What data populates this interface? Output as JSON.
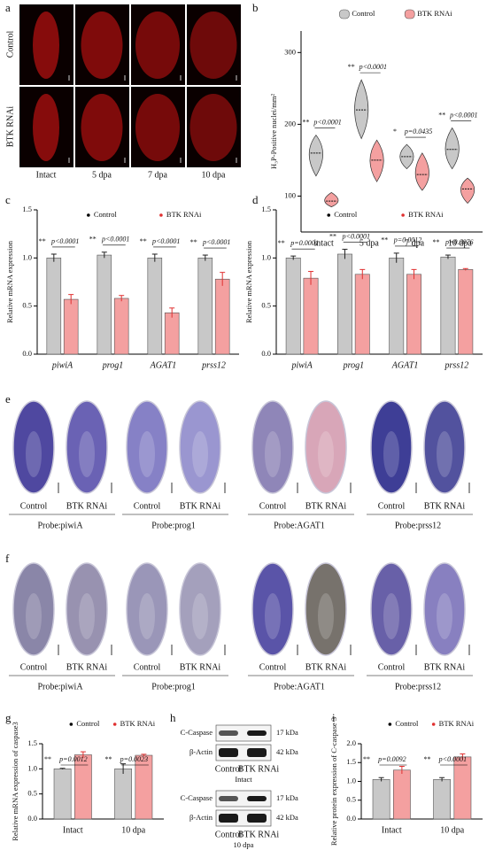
{
  "chart_data": [
    {
      "type": "violin",
      "panel": "b",
      "ylabel": "H₃P-Positive nuclei/mm²",
      "categories": [
        "intact",
        "5 dpa",
        "7 dpa",
        "10 dpa"
      ],
      "series": [
        {
          "name": "Control",
          "color": "#c8c8c8",
          "values": [
            160,
            220,
            155,
            165
          ],
          "mins": [
            128,
            180,
            138,
            138
          ],
          "maxs": [
            185,
            262,
            172,
            195
          ]
        },
        {
          "name": "BTK RNAi",
          "color": "#f4a0a0",
          "values": [
            93,
            150,
            130,
            110
          ],
          "mins": [
            85,
            120,
            108,
            90
          ],
          "maxs": [
            105,
            178,
            160,
            125
          ]
        }
      ],
      "ylim": [
        50,
        330
      ],
      "yticks": [
        100,
        200,
        300
      ],
      "annotations": [
        {
          "stars": "**",
          "text": "p<0.0001"
        },
        {
          "stars": "**",
          "text": "p<0.0001"
        },
        {
          "stars": "*",
          "text": "p=0.0435"
        },
        {
          "stars": "**",
          "text": "p<0.0001"
        }
      ]
    },
    {
      "type": "bar",
      "panel": "c",
      "ylabel": "Relative mRNA expression",
      "categories": [
        "piwiA",
        "prog1",
        "AGAT1",
        "prss12"
      ],
      "series": [
        {
          "name": "Control",
          "color": "#c8c8c8",
          "values": [
            1.0,
            1.03,
            1.0,
            1.0
          ],
          "errors": [
            0.04,
            0.03,
            0.04,
            0.03
          ]
        },
        {
          "name": "BTK RNAi",
          "color": "#f4a0a0",
          "values": [
            0.57,
            0.58,
            0.43,
            0.78
          ],
          "errors": [
            0.05,
            0.03,
            0.05,
            0.07
          ]
        }
      ],
      "ylim": [
        0,
        1.5
      ],
      "yticks": [
        {
          "value": 0,
          "label": "0.0"
        },
        0.5,
        {
          "value": 1,
          "label": "1.0"
        },
        1.5
      ],
      "annotations": [
        {
          "stars": "**",
          "text": "p<0.0001"
        },
        {
          "stars": "**",
          "text": "p<0.0001"
        },
        {
          "stars": "**",
          "text": "p<0.0001"
        },
        {
          "stars": "**",
          "text": "p<0.0001"
        }
      ]
    },
    {
      "type": "bar",
      "panel": "d",
      "ylabel": "Relative mRNA expression",
      "categories": [
        "piwiA",
        "prog1",
        "AGAT1",
        "prss12"
      ],
      "series": [
        {
          "name": "Control",
          "color": "#c8c8c8",
          "values": [
            1.0,
            1.04,
            1.0,
            1.01
          ],
          "errors": [
            0.02,
            0.05,
            0.05,
            0.02
          ]
        },
        {
          "name": "BTK RNAi",
          "color": "#f4a0a0",
          "values": [
            0.79,
            0.83,
            0.83,
            0.88
          ],
          "errors": [
            0.07,
            0.05,
            0.05,
            0.01
          ]
        }
      ],
      "ylim": [
        0,
        1.5
      ],
      "yticks": [
        {
          "value": 0,
          "label": "0.0"
        },
        0.5,
        {
          "value": 1,
          "label": "1.0"
        },
        1.5
      ],
      "annotations": [
        {
          "stars": "**",
          "text": "p=0.0001"
        },
        {
          "stars": "**",
          "text": "p<0.0001"
        },
        {
          "stars": "**",
          "text": "p=0.0012"
        },
        {
          "stars": "**",
          "text": "p=0.0076"
        }
      ]
    },
    {
      "type": "bar",
      "panel": "g",
      "ylabel": "Relative mRNA expression of caspase3",
      "categories": [
        "Intact",
        "10 dpa"
      ],
      "series": [
        {
          "name": "Control",
          "color": "#c8c8c8",
          "values": [
            1.0,
            1.0
          ],
          "errors": [
            0.01,
            0.1
          ]
        },
        {
          "name": "BTK RNAi",
          "color": "#f4a0a0",
          "values": [
            1.28,
            1.27
          ],
          "errors": [
            0.06,
            0.02
          ]
        }
      ],
      "ylim": [
        0,
        1.5
      ],
      "yticks": [
        {
          "value": 0,
          "label": "0.0"
        },
        0.5,
        {
          "value": 1,
          "label": "1.0"
        },
        1.5
      ],
      "annotations": [
        {
          "stars": "**",
          "text": "p=0.0012"
        },
        {
          "stars": "**",
          "text": "p=0.0023"
        }
      ]
    },
    {
      "type": "bar",
      "panel": "i",
      "ylabel": "Relative protein expression of C-caspase 3",
      "categories": [
        "Intact",
        "10 dpa"
      ],
      "series": [
        {
          "name": "Control",
          "color": "#c8c8c8",
          "values": [
            1.05,
            1.05
          ],
          "errors": [
            0.05,
            0.05
          ]
        },
        {
          "name": "BTK RNAi",
          "color": "#f4a0a0",
          "values": [
            1.3,
            1.65
          ],
          "errors": [
            0.1,
            0.08
          ]
        }
      ],
      "ylim": [
        0,
        2
      ],
      "yticks": [
        {
          "value": 0,
          "label": "0.0"
        },
        0.5,
        {
          "value": 1,
          "label": "1.0"
        },
        1.5,
        {
          "value": 2,
          "label": "2.0"
        }
      ],
      "annotations": [
        {
          "stars": "**",
          "text": "p=0.0092"
        },
        {
          "stars": "**",
          "text": "p<0.0001"
        }
      ]
    }
  ],
  "figure": {
    "a": {
      "panel": "a",
      "rows": [
        "Control",
        "BTK RNAi"
      ],
      "columns": [
        "Intact",
        "5 dpa",
        "7 dpa",
        "10 dpa"
      ]
    },
    "e": {
      "panel": "e",
      "groups": [
        {
          "conditions": [
            "Control",
            "BTK RNAi"
          ],
          "probe": "Probe:piwiA"
        },
        {
          "conditions": [
            "Control",
            "BTK RNAi"
          ],
          "probe": "Probe:prog1"
        },
        {
          "conditions": [
            "Control",
            "BTK RNAi"
          ],
          "probe": "Probe:AGAT1"
        },
        {
          "conditions": [
            "Control",
            "BTK RNAi"
          ],
          "probe": "Probe:prss12"
        }
      ]
    },
    "f": {
      "panel": "f",
      "groups": [
        {
          "conditions": [
            "Control",
            "BTK RNAi"
          ],
          "probe": "Probe:piwiA"
        },
        {
          "conditions": [
            "Control",
            "BTK RNAi"
          ],
          "probe": "Probe:prog1"
        },
        {
          "conditions": [
            "Control",
            "BTK RNAi"
          ],
          "probe": "Probe:AGAT1"
        },
        {
          "conditions": [
            "Control",
            "BTK RNAi"
          ],
          "probe": "Probe:prss12"
        }
      ]
    },
    "h": {
      "panel": "h",
      "blots": [
        {
          "rows": [
            {
              "label": "C-Caspase",
              "size": "17 kDa"
            },
            {
              "label": "β-Actin",
              "size": "42 kDa"
            }
          ],
          "lanes": [
            "Control",
            "BTK RNAi"
          ],
          "condition": "Intact"
        },
        {
          "rows": [
            {
              "label": "C-Caspase",
              "size": "17 kDa"
            },
            {
              "label": "β-Actin",
              "size": "42 kDa"
            }
          ],
          "lanes": [
            "Control",
            "BTK RNAi"
          ],
          "condition": "10 dpa"
        }
      ]
    }
  }
}
